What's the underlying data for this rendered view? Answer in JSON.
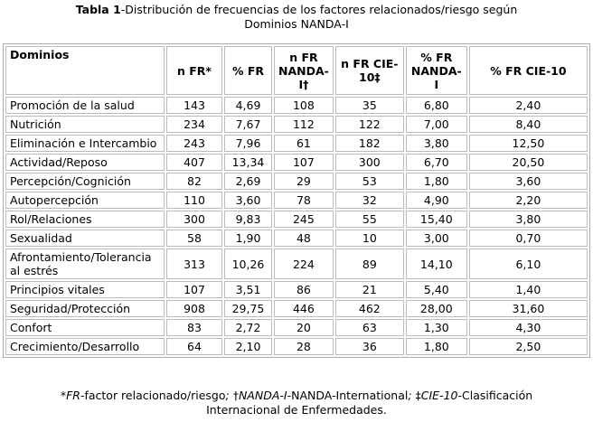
{
  "caption": {
    "label": "Tabla 1",
    "text": "-Distribución de frecuencias de los factores relacionados/riesgo según",
    "line2": "Dominios NANDA-I"
  },
  "headers": [
    "Dominios",
    "n FR*",
    "% FR",
    "n FR NANDA-I†",
    "n FR CIE-10‡",
    "% FR NANDA-I",
    "% FR CIE-10"
  ],
  "rows": [
    [
      "Promoción de la salud",
      "143",
      "4,69",
      "108",
      "35",
      "6,80",
      "2,40"
    ],
    [
      "Nutrición",
      "234",
      "7,67",
      "112",
      "122",
      "7,00",
      "8,40"
    ],
    [
      "Eliminación e Intercambio",
      "243",
      "7,96",
      "61",
      "182",
      "3,80",
      "12,50"
    ],
    [
      "Actividad/Reposo",
      "407",
      "13,34",
      "107",
      "300",
      "6,70",
      "20,50"
    ],
    [
      "Percepción/Cognición",
      "82",
      "2,69",
      "29",
      "53",
      "1,80",
      "3,60"
    ],
    [
      "Autopercepción",
      "110",
      "3,60",
      "78",
      "32",
      "4,90",
      "2,20"
    ],
    [
      "Rol/Relaciones",
      "300",
      "9,83",
      "245",
      "55",
      "15,40",
      "3,80"
    ],
    [
      "Sexualidad",
      "58",
      "1,90",
      "48",
      "10",
      "3,00",
      "0,70"
    ],
    [
      "Afrontamiento/Tolerancia al estrés",
      "313",
      "10,26",
      "224",
      "89",
      "14,10",
      "6,10"
    ],
    [
      "Principios vitales",
      "107",
      "3,51",
      "86",
      "21",
      "5,40",
      "1,40"
    ],
    [
      "Seguridad/Protección",
      "908",
      "29,75",
      "446",
      "462",
      "28,00",
      "31,60"
    ],
    [
      "Confort",
      "83",
      "2,72",
      "20",
      "63",
      "1,30",
      "4,30"
    ],
    [
      "Crecimiento/Desarrollo",
      "64",
      "2,10",
      "28",
      "36",
      "1,80",
      "2,50"
    ]
  ],
  "footnote": {
    "a_sym": "*",
    "a_abbr": "FR",
    "a_text": "-factor relacionado/riesgo",
    "sep1": "; ",
    "b_sym": "†",
    "b_abbr": "NANDA-I",
    "b_text": "-NANDA-International",
    "sep2": "; ",
    "c_sym": "‡",
    "c_abbr": "CIE-10",
    "c_text": "-Clasificación",
    "line2": "Internacional de Enfermedades."
  }
}
